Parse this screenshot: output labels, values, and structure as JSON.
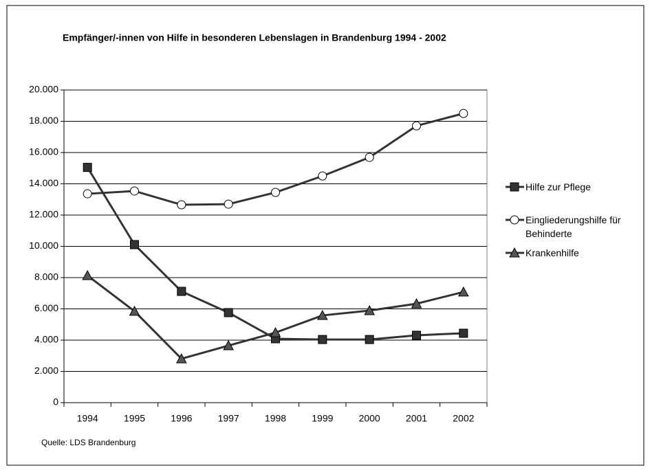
{
  "chart_data": {
    "type": "line",
    "title": "Empfänger/-innen von Hilfe in besonderen Lebenslagen in Brandenburg 1994 - 2002",
    "source": "Quelle: LDS Brandenburg",
    "categories": [
      "1994",
      "1995",
      "1996",
      "1997",
      "1998",
      "1999",
      "2000",
      "2001",
      "2002"
    ],
    "series": [
      {
        "name": "Hilfe zur Pflege",
        "color": "#333333",
        "marker": "square",
        "marker_fill": "#333333",
        "values": [
          15050,
          10110,
          7120,
          5760,
          4090,
          4040,
          4040,
          4310,
          4440
        ]
      },
      {
        "name": "Eingliederungshilfe für Behinderte",
        "color": "#333333",
        "marker": "circle",
        "marker_fill": "#ffffff",
        "values": [
          13360,
          13540,
          12660,
          12700,
          13450,
          14500,
          15690,
          17710,
          18500
        ]
      },
      {
        "name": "Krankenhilfe",
        "color": "#333333",
        "marker": "triangle",
        "marker_fill": "#555555",
        "values": [
          8130,
          5850,
          2810,
          3650,
          4480,
          5580,
          5890,
          6330,
          7080
        ]
      }
    ],
    "ylim": [
      0,
      20000
    ],
    "yticks": [
      0,
      {
        "value": 2000,
        "label": "2.000"
      },
      {
        "value": 4000,
        "label": "4.000"
      },
      {
        "value": 6000,
        "label": "6.000"
      },
      {
        "value": 8000,
        "label": "8.000"
      },
      {
        "value": 10000,
        "label": "10.000"
      },
      {
        "value": 12000,
        "label": "12.000"
      },
      {
        "value": 14000,
        "label": "14.000"
      },
      {
        "value": 16000,
        "label": "16.000"
      },
      {
        "value": 18000,
        "label": "18.000"
      },
      {
        "value": 20000,
        "label": "20.000"
      }
    ],
    "grid": true,
    "legend": "right"
  }
}
